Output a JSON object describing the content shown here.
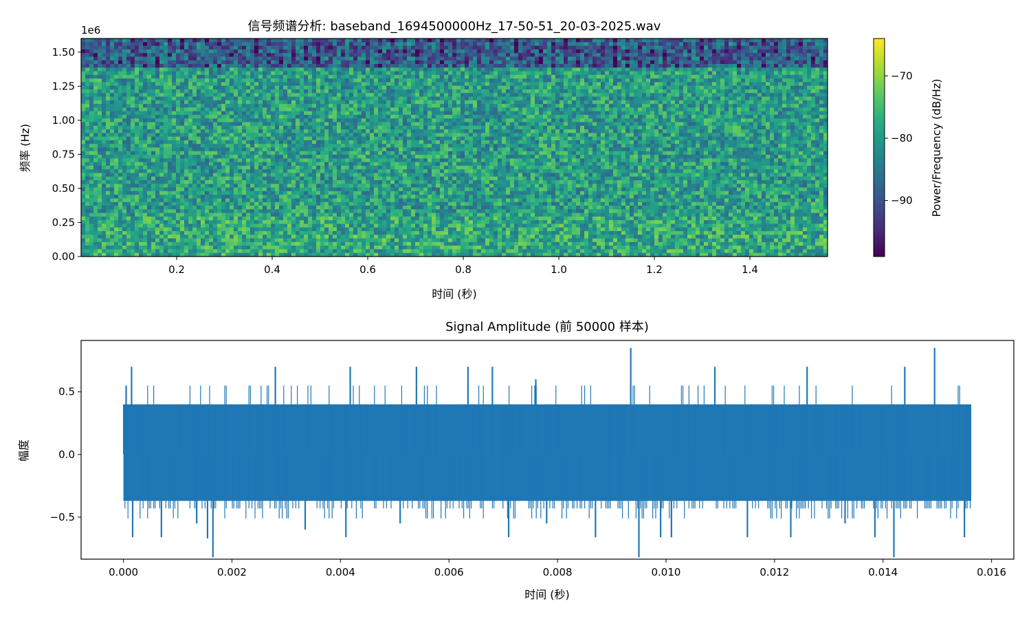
{
  "chart_data": [
    {
      "type": "heatmap",
      "title": "信号频谱分析: baseband_1694500000Hz_17-50-51_20-03-2025.wav",
      "xlabel": "时间 (秒)",
      "ylabel": "频率 (Hz)",
      "y_offset_label": "1e6",
      "xlim": [
        0.0,
        1.5625
      ],
      "ylim": [
        0,
        1600000
      ],
      "xticks": [
        0.2,
        0.4,
        0.6,
        0.8,
        1.0,
        1.2,
        1.4
      ],
      "xtick_labels": [
        "0.2",
        "0.4",
        "0.6",
        "0.8",
        "1.0",
        "1.2",
        "1.4"
      ],
      "yticks": [
        0,
        250000,
        500000,
        750000,
        1000000,
        1250000,
        1500000
      ],
      "ytick_labels": [
        "0.00",
        "0.25",
        "0.50",
        "0.75",
        "1.00",
        "1.25",
        "1.50"
      ],
      "colorbar": {
        "label": "Power/Frequency (dB/Hz)",
        "range": [
          -99,
          -64
        ],
        "ticks": [
          -70,
          -80,
          -90
        ],
        "tick_labels": [
          "−70",
          "−80",
          "−90"
        ],
        "colormap": "viridis"
      }
    },
    {
      "type": "line",
      "title": "Signal Amplitude (前 50000 样本)",
      "xlabel": "时间 (秒)",
      "ylabel": "幅度",
      "xlim": [
        -0.00078,
        0.01641
      ],
      "ylim": [
        -0.835,
        0.91
      ],
      "xticks": [
        0.0,
        0.002,
        0.004,
        0.006,
        0.008,
        0.01,
        0.012,
        0.014,
        0.016
      ],
      "xtick_labels": [
        "0.000",
        "0.002",
        "0.004",
        "0.006",
        "0.008",
        "0.010",
        "0.012",
        "0.014",
        "0.016"
      ],
      "yticks": [
        0.5,
        0.0,
        -0.5
      ],
      "ytick_labels": [
        "0.5",
        "0.0",
        "−0.5"
      ],
      "color": "#1f77b4",
      "x_start": 0.0,
      "x_end": 0.015625,
      "core_range": [
        -0.37,
        0.4
      ],
      "spikes": [
        {
          "x": 5e-05,
          "y": 0.55
        },
        {
          "x": 0.00015,
          "y": 0.7
        },
        {
          "x": 0.00017,
          "y": -0.66
        },
        {
          "x": 0.0007,
          "y": -0.66
        },
        {
          "x": 0.00135,
          "y": -0.55
        },
        {
          "x": 0.00155,
          "y": -0.67
        },
        {
          "x": 0.00165,
          "y": -0.82
        },
        {
          "x": 0.0028,
          "y": 0.7
        },
        {
          "x": 0.00335,
          "y": -0.6
        },
        {
          "x": 0.0041,
          "y": -0.66
        },
        {
          "x": 0.00418,
          "y": 0.7
        },
        {
          "x": 0.0051,
          "y": -0.55
        },
        {
          "x": 0.0054,
          "y": 0.7
        },
        {
          "x": 0.00635,
          "y": 0.7
        },
        {
          "x": 0.0068,
          "y": 0.7
        },
        {
          "x": 0.0071,
          "y": -0.66
        },
        {
          "x": 0.0076,
          "y": 0.6
        },
        {
          "x": 0.0078,
          "y": -0.55
        },
        {
          "x": 0.0087,
          "y": -0.66
        },
        {
          "x": 0.00935,
          "y": 0.85
        },
        {
          "x": 0.0095,
          "y": -0.82
        },
        {
          "x": 0.0099,
          "y": -0.66
        },
        {
          "x": 0.0101,
          "y": -0.66
        },
        {
          "x": 0.0109,
          "y": 0.7
        },
        {
          "x": 0.0115,
          "y": -0.66
        },
        {
          "x": 0.0123,
          "y": -0.66
        },
        {
          "x": 0.0126,
          "y": 0.7
        },
        {
          "x": 0.0133,
          "y": -0.55
        },
        {
          "x": 0.01385,
          "y": -0.66
        },
        {
          "x": 0.0142,
          "y": -0.82
        },
        {
          "x": 0.0144,
          "y": 0.7
        },
        {
          "x": 0.01495,
          "y": 0.85
        },
        {
          "x": 0.0155,
          "y": -0.66
        }
      ]
    }
  ]
}
